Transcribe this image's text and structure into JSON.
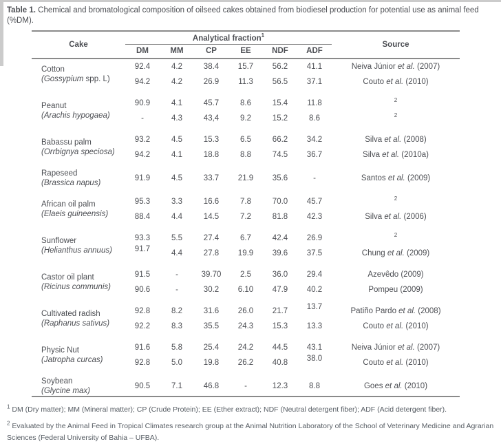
{
  "caption": {
    "label": "Table 1.",
    "text": "Chemical and bromatological composition of oilseed cakes obtained from biodiesel production for potential use as animal feed (%DM)."
  },
  "colors": {
    "text": "#4c4e53",
    "rule": "#8a8a8a",
    "page": "#ffffff",
    "edge": "#cbcbcb"
  },
  "table": {
    "header": {
      "cake": "Cake",
      "analytical": "Analytical fraction",
      "analytical_sup": "1",
      "fractions": [
        "DM",
        "MM",
        "CP",
        "EE",
        "NDF",
        "ADF"
      ],
      "source": "Source"
    },
    "groups": [
      {
        "name": "Cotton",
        "sci_it": "(Gossypium",
        "sci_rest": " spp. L)",
        "rows": [
          {
            "v": [
              "92.4",
              "4.2",
              "38.4",
              "15.7",
              "56.2",
              "41.1"
            ],
            "src": {
              "pre": "Neiva Júnior ",
              "it": "et al.",
              "post": " (2007)"
            }
          },
          {
            "v": [
              "94.2",
              "4.2",
              "26.9",
              "11.3",
              "56.5",
              "37.1"
            ],
            "src": {
              "pre": "Couto ",
              "it": "et al.",
              "post": " (2010)"
            }
          }
        ]
      },
      {
        "name": "Peanut",
        "sci_it": "(Arachis hypogaea)",
        "sci_rest": "",
        "rows": [
          {
            "v": [
              "90.9",
              "4.1",
              "45.7",
              "8.6",
              "15.4",
              "11.8"
            ],
            "src_sup": "2"
          },
          {
            "v": [
              "-",
              "4.3",
              "43,4",
              "9.2",
              "15.2",
              "8.6"
            ],
            "src_sup": "2"
          }
        ]
      },
      {
        "name": "Babassu palm",
        "sci_it": "(Orrbignya speciosa)",
        "sci_rest": "",
        "rows": [
          {
            "v": [
              "93.2",
              "4.5",
              "15.3",
              "6.5",
              "66.2",
              "34.2"
            ],
            "src": {
              "pre": "Silva ",
              "it": "et al.",
              "post": " (2008)"
            }
          },
          {
            "v": [
              "94.2",
              "4.1",
              "18.8",
              "8.8",
              "74.5",
              "36.7"
            ],
            "src": {
              "pre": "Silva ",
              "it": "et al.",
              "post": " (2010a)"
            }
          }
        ]
      },
      {
        "name": "Rapeseed",
        "sci_it": "(Brassica napus)",
        "sci_rest": "",
        "rows": [
          {
            "v": [
              "91.9",
              "4.5",
              "33.7",
              "21.9",
              "35.6",
              "-"
            ],
            "src": {
              "pre": "Santos ",
              "it": "et al.",
              "post": " (2009)"
            }
          }
        ]
      },
      {
        "name": "African oil palm",
        "sci_it": "(Elaeis guineensis)",
        "sci_rest": "",
        "rows": [
          {
            "v": [
              "95.3",
              "3.3",
              "16.6",
              "7.8",
              "70.0",
              "45.7"
            ],
            "src_sup": "2"
          },
          {
            "v": [
              "88.4",
              "4.4",
              "14.5",
              "7.2",
              "81.8",
              "42.3"
            ],
            "src": {
              "pre": "Silva ",
              "it": "et al.",
              "post": " (2006)"
            }
          }
        ]
      },
      {
        "name": "Sunflower",
        "sci_it": "(Helianthus annuus)",
        "sci_rest": "",
        "rows": [
          {
            "v": [
              "93.3",
              "5.5",
              "27.4",
              "6.7",
              "42.4",
              "26.9"
            ],
            "src_sup": "2"
          },
          {
            "v": [
              "91.7",
              "4.4",
              "27.8",
              "19.9",
              "39.6",
              "37.5"
            ],
            "raised": [
              0
            ],
            "src": {
              "pre": "Chung ",
              "it": "et al.",
              "post": " (2009)"
            }
          }
        ]
      },
      {
        "name": "Castor oil plant",
        "sci_it": "(Ricinus communis)",
        "sci_rest": "",
        "rows": [
          {
            "v": [
              "91.5",
              "-",
              "39.70",
              "2.5",
              "36.0",
              "29.4"
            ],
            "src": {
              "pre": "Azevêdo (2009)",
              "it": "",
              "post": ""
            }
          },
          {
            "v": [
              "90.6",
              "-",
              "30.2",
              "6.10",
              "47.9",
              "40.2"
            ],
            "src": {
              "pre": "Pompeu (2009)",
              "it": "",
              "post": ""
            }
          }
        ]
      },
      {
        "name": "Cultivated radish",
        "sci_it": "(Raphanus sativus)",
        "sci_rest": "",
        "rows": [
          {
            "v": [
              "92.8",
              "8.2",
              "31.6",
              "26.0",
              "21.7",
              "13.7"
            ],
            "raised": [
              5
            ],
            "src": {
              "pre": "Patiño Pardo ",
              "it": "et al.",
              "post": " (2008)"
            }
          },
          {
            "v": [
              "92.2",
              "8.3",
              "35.5",
              "24.3",
              "15.3",
              "13.3"
            ],
            "src": {
              "pre": "Couto ",
              "it": "et al.",
              "post": " (2010)"
            }
          }
        ]
      },
      {
        "name": "Physic Nut",
        "sci_it": "(Jatropha curcas)",
        "sci_rest": "",
        "rows": [
          {
            "v": [
              "91.6",
              "5.8",
              "25.4",
              "24.2",
              "44.5",
              "43.1"
            ],
            "src": {
              "pre": "Neiva Júnior ",
              "it": "et al.",
              "post": " (2007)"
            }
          },
          {
            "v": [
              "92.8",
              "5.0",
              "19.8",
              "26.2",
              "40.8",
              "38.0"
            ],
            "raised": [
              5
            ],
            "src": {
              "pre": "Couto ",
              "it": "et al.",
              "post": " (2010)"
            }
          }
        ]
      },
      {
        "name": "Soybean",
        "sci_it": "(Glycine max)",
        "sci_rest": "",
        "rows": [
          {
            "v": [
              "90.5",
              "7.1",
              "46.8",
              "-",
              "12.3",
              "8.8"
            ],
            "src": {
              "pre": "Goes ",
              "it": "et al.",
              "post": " (2010)"
            }
          }
        ]
      }
    ]
  },
  "footnotes": [
    {
      "sup": "1",
      "text": "DM (Dry matter); MM (Mineral matter); CP (Crude Protein); EE (Ether extract); NDF (Neutral detergent fiber); ADF (Acid detergent fiber)."
    },
    {
      "sup": "2",
      "text": "Evaluated by the Animal Feed in Tropical Climates research group at the Animal Nutrition Laboratory of the School of Veterinary Medicine and Agrarian Sciences (Federal University of Bahia – UFBA)."
    }
  ]
}
